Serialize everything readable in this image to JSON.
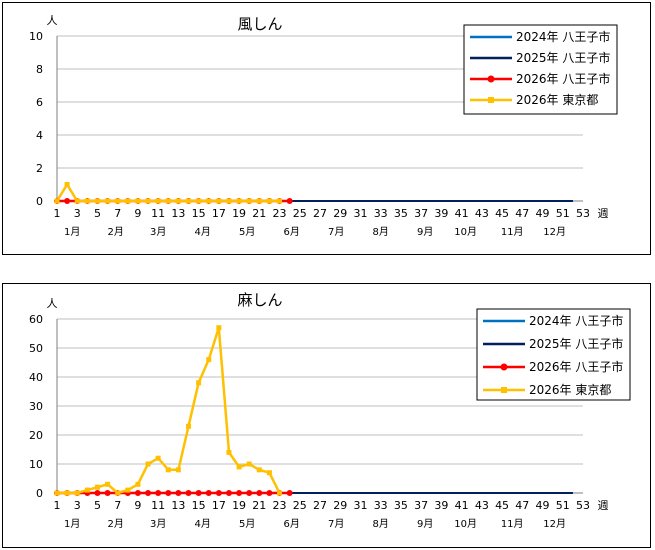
{
  "chart_data": [
    {
      "type": "line",
      "title": "風しん",
      "unit_label": "人",
      "xlabel": "週",
      "ylim": [
        0,
        10
      ],
      "yticks": [
        0,
        2,
        4,
        6,
        8,
        10
      ],
      "xticks": [
        1,
        3,
        5,
        7,
        9,
        11,
        13,
        15,
        17,
        19,
        21,
        23,
        25,
        27,
        29,
        31,
        33,
        35,
        37,
        39,
        41,
        43,
        45,
        47,
        49,
        51,
        53
      ],
      "months": [
        "1月",
        "2月",
        "3月",
        "4月",
        "5月",
        "6月",
        "7月",
        "8月",
        "9月",
        "10月",
        "11月",
        "12月"
      ],
      "month_weeks": [
        2.5,
        6.8,
        11,
        15.4,
        19.8,
        24.2,
        28.6,
        33,
        37.4,
        41.4,
        46,
        50.2
      ],
      "grid": true,
      "legend_position": "top-right",
      "series": [
        {
          "name": "2024年  八王子市",
          "color": "#0070c0",
          "marker": "none",
          "x": [
            1,
            52
          ],
          "values": [
            0,
            0
          ]
        },
        {
          "name": "2025年  八王子市",
          "color": "#002060",
          "marker": "none",
          "x": [
            1,
            52
          ],
          "values": [
            0,
            0
          ]
        },
        {
          "name": "2026年  八王子市",
          "color": "#ff0000",
          "marker": "circle",
          "x": [
            1,
            2,
            3,
            4,
            5,
            6,
            7,
            8,
            9,
            10,
            11,
            12,
            13,
            14,
            15,
            16,
            17,
            18,
            19,
            20,
            21,
            22,
            23,
            24
          ],
          "values": [
            0,
            0,
            0,
            0,
            0,
            0,
            0,
            0,
            0,
            0,
            0,
            0,
            0,
            0,
            0,
            0,
            0,
            0,
            0,
            0,
            0,
            0,
            0,
            0
          ]
        },
        {
          "name": "2026年  東京都",
          "color": "#ffc000",
          "marker": "square",
          "x": [
            1,
            2,
            3,
            4,
            5,
            6,
            7,
            8,
            9,
            10,
            11,
            12,
            13,
            14,
            15,
            16,
            17,
            18,
            19,
            20,
            21,
            22,
            23
          ],
          "values": [
            0,
            1,
            0,
            0,
            0,
            0,
            0,
            0,
            0,
            0,
            0,
            0,
            0,
            0,
            0,
            0,
            0,
            0,
            0,
            0,
            0,
            0,
            0
          ]
        }
      ]
    },
    {
      "type": "line",
      "title": "麻しん",
      "unit_label": "人",
      "xlabel": "週",
      "ylim": [
        0,
        60
      ],
      "yticks": [
        0,
        10,
        20,
        30,
        40,
        50,
        60
      ],
      "xticks": [
        1,
        3,
        5,
        7,
        9,
        11,
        13,
        15,
        17,
        19,
        21,
        23,
        25,
        27,
        29,
        31,
        33,
        35,
        37,
        39,
        41,
        43,
        45,
        47,
        49,
        51,
        53
      ],
      "months": [
        "1月",
        "2月",
        "3月",
        "4月",
        "5月",
        "6月",
        "7月",
        "8月",
        "9月",
        "10月",
        "11月",
        "12月"
      ],
      "month_weeks": [
        2.5,
        6.8,
        11,
        15.4,
        19.8,
        24.2,
        28.6,
        33,
        37.4,
        41.4,
        46,
        50.2
      ],
      "grid": true,
      "legend_position": "top-right",
      "series": [
        {
          "name": "2024年  八王子市",
          "color": "#0070c0",
          "marker": "none",
          "x": [
            1,
            52
          ],
          "values": [
            0,
            0
          ]
        },
        {
          "name": "2025年  八王子市",
          "color": "#002060",
          "marker": "none",
          "x": [
            1,
            52
          ],
          "values": [
            0,
            0
          ]
        },
        {
          "name": "2026年  八王子市",
          "color": "#ff0000",
          "marker": "circle",
          "x": [
            1,
            2,
            3,
            4,
            5,
            6,
            7,
            8,
            9,
            10,
            11,
            12,
            13,
            14,
            15,
            16,
            17,
            18,
            19,
            20,
            21,
            22,
            23,
            24
          ],
          "values": [
            0,
            0,
            0,
            0,
            0,
            0,
            0,
            0,
            0,
            0,
            0,
            0,
            0,
            0,
            0,
            0,
            0,
            0,
            0,
            0,
            0,
            0,
            0,
            0
          ]
        },
        {
          "name": "2026年  東京都",
          "color": "#ffc000",
          "marker": "square",
          "x": [
            1,
            2,
            3,
            4,
            5,
            6,
            7,
            8,
            9,
            10,
            11,
            12,
            13,
            14,
            15,
            16,
            17,
            18,
            19,
            20,
            21,
            22,
            23
          ],
          "values": [
            0,
            0,
            0,
            1,
            2,
            3,
            0,
            1,
            3,
            10,
            12,
            8,
            8,
            23,
            38,
            46,
            57,
            14,
            9,
            10,
            8,
            7,
            0
          ]
        }
      ]
    }
  ]
}
